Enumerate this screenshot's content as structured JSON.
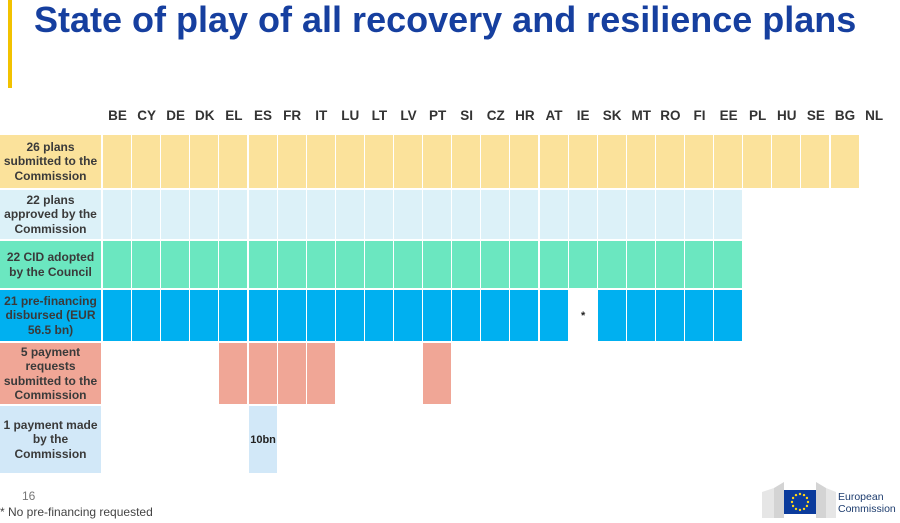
{
  "title": "State of play of all recovery and resilience plans",
  "countries": [
    "BE",
    "CY",
    "DE",
    "DK",
    "EL",
    "ES",
    "FR",
    "IT",
    "LU",
    "LT",
    "LV",
    "PT",
    "SI",
    "CZ",
    "HR",
    "AT",
    "IE",
    "SK",
    "MT",
    "RO",
    "FI",
    "EE",
    "PL",
    "HU",
    "SE",
    "BG",
    "NL"
  ],
  "colors": {
    "title": "#163f9f",
    "accent": "#f2c200",
    "submitted": "#fbe29b",
    "approved": "#dcf1f8",
    "cid": "#6be7c0",
    "prefinancing": "#00b0f0",
    "requests": "#f0a696",
    "payment": "#d2e8f8"
  },
  "rows": [
    {
      "label": "26 plans submitted to the Commission",
      "color_key": "submitted",
      "countries": [
        "BE",
        "CY",
        "DE",
        "DK",
        "EL",
        "ES",
        "FR",
        "IT",
        "LU",
        "LT",
        "LV",
        "PT",
        "SI",
        "CZ",
        "HR",
        "AT",
        "IE",
        "SK",
        "MT",
        "RO",
        "FI",
        "EE",
        "PL",
        "HU",
        "SE",
        "BG"
      ]
    },
    {
      "label": "22 plans approved by the Commission",
      "color_key": "approved",
      "countries": [
        "BE",
        "CY",
        "DE",
        "DK",
        "EL",
        "ES",
        "FR",
        "IT",
        "LU",
        "LT",
        "LV",
        "PT",
        "SI",
        "CZ",
        "HR",
        "AT",
        "IE",
        "SK",
        "MT",
        "RO",
        "FI",
        "EE"
      ]
    },
    {
      "label": "22 CID adopted by the Council",
      "color_key": "cid",
      "countries": [
        "BE",
        "CY",
        "DE",
        "DK",
        "EL",
        "ES",
        "FR",
        "IT",
        "LU",
        "LT",
        "LV",
        "PT",
        "SI",
        "CZ",
        "HR",
        "AT",
        "IE",
        "SK",
        "MT",
        "RO",
        "FI",
        "EE"
      ]
    },
    {
      "label": "21 pre-financing disbursed (EUR 56.5 bn)",
      "color_key": "prefinancing",
      "countries": [
        "BE",
        "CY",
        "DE",
        "DK",
        "EL",
        "ES",
        "FR",
        "IT",
        "LU",
        "LT",
        "LV",
        "PT",
        "SI",
        "CZ",
        "HR",
        "AT",
        "SK",
        "MT",
        "RO",
        "FI",
        "EE"
      ],
      "marks": [
        {
          "country": "IE",
          "text": "*"
        }
      ]
    },
    {
      "label": "5 payment requests submitted to the Commission",
      "color_key": "requests",
      "countries": [
        "EL",
        "ES",
        "FR",
        "IT",
        "PT"
      ]
    },
    {
      "label": "1 payment made by the Commission",
      "color_key": "payment",
      "countries": [
        "ES"
      ],
      "marks": [
        {
          "country": "ES",
          "text": "10bn"
        }
      ]
    }
  ],
  "page_number": "16",
  "footnote": "* No pre-financing requested",
  "logo": {
    "line1": "European",
    "line2": "Commission"
  }
}
